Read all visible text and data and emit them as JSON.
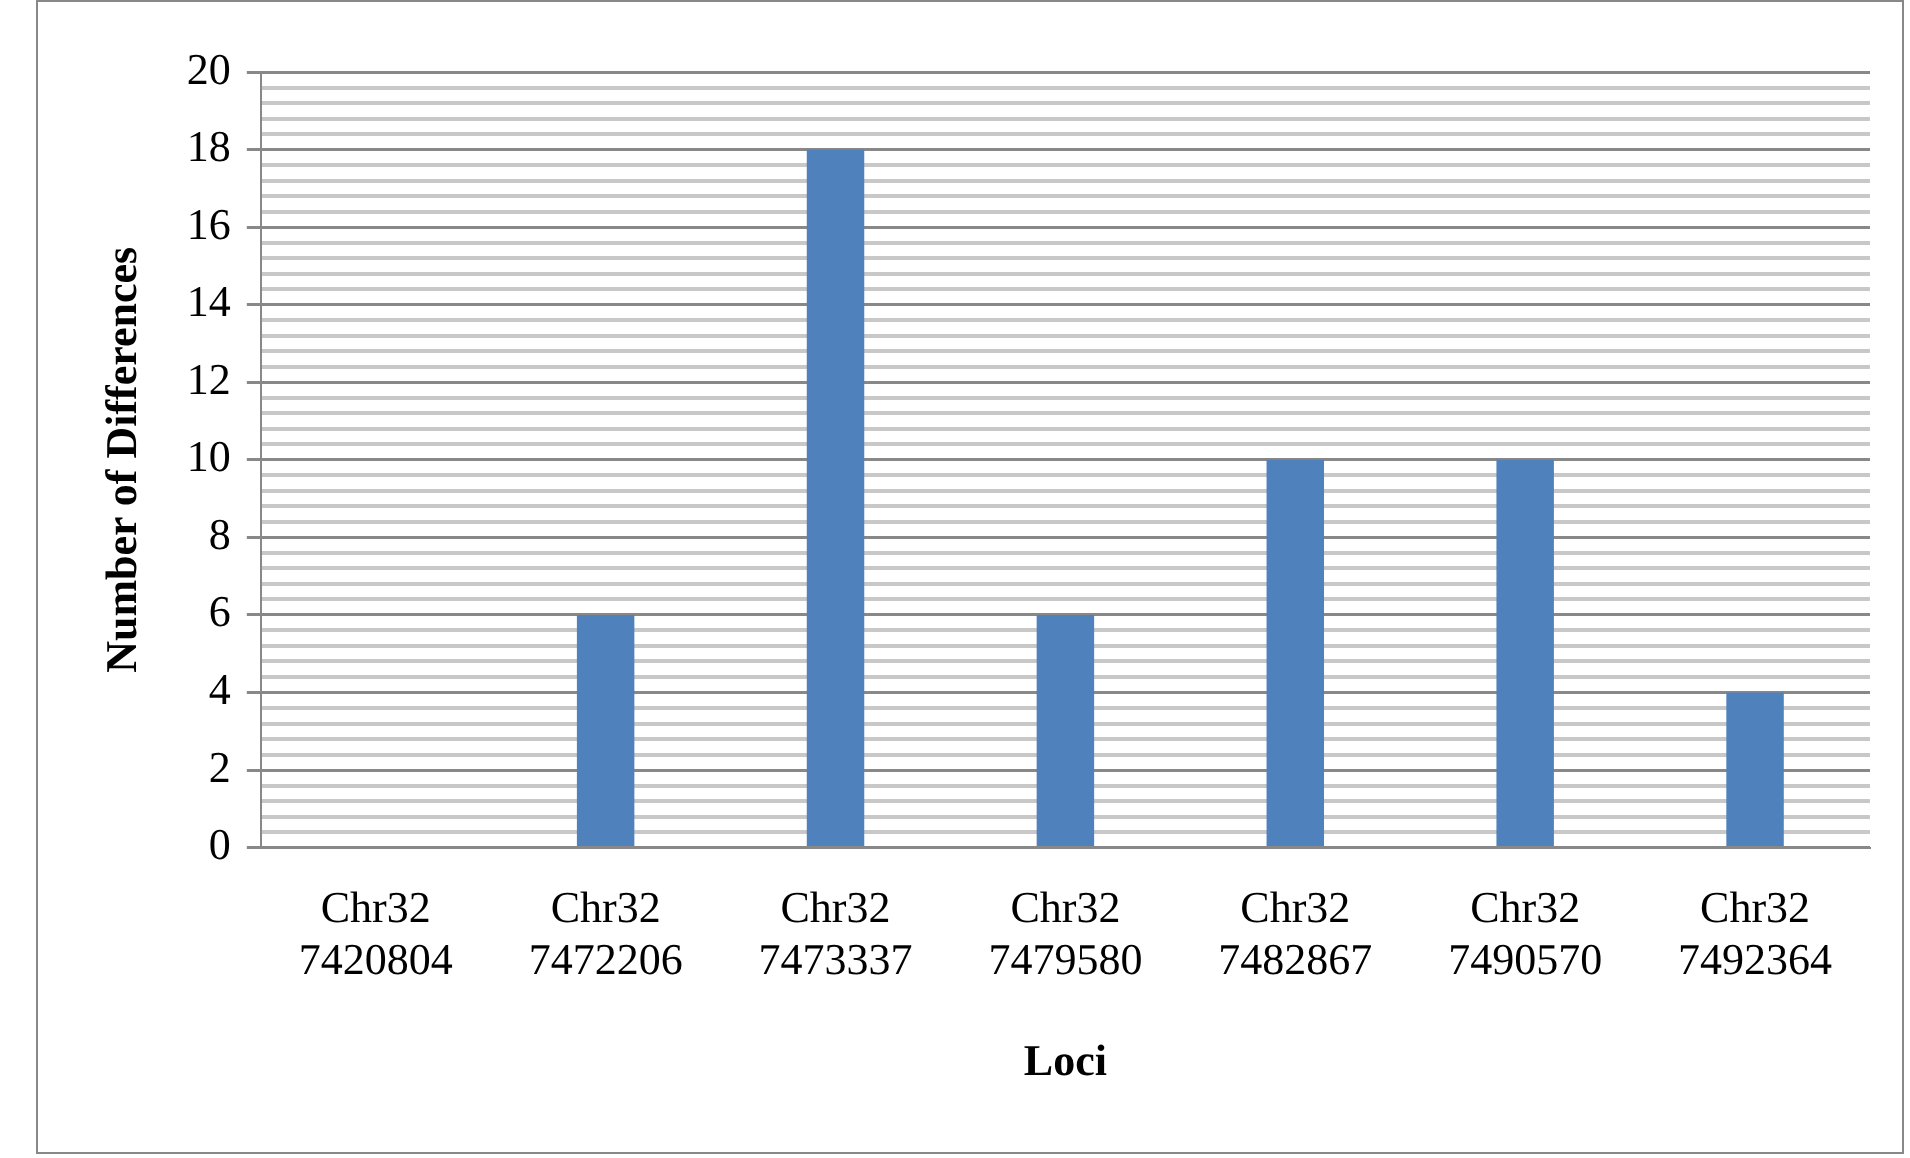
{
  "chart_data": {
    "type": "bar",
    "xlabel": "Loci",
    "ylabel": "Number of Differences",
    "categories": [
      "Chr32 7420804",
      "Chr32 7472206",
      "Chr32 7473337",
      "Chr32 7479580",
      "Chr32 7482867",
      "Chr32 7490570",
      "Chr32 7492364"
    ],
    "values": [
      0,
      6,
      18,
      6,
      10,
      10,
      4
    ],
    "color": "#4f81bd",
    "ylim": [
      0,
      20
    ],
    "yticks": [
      0,
      {
        "value": 0.4,
        "label": null
      },
      {
        "value": 0.8,
        "label": null
      },
      {
        "value": 1.2,
        "label": null
      },
      {
        "value": 1.6,
        "label": null
      },
      2,
      {
        "value": 2.4,
        "label": null
      },
      {
        "value": 2.8,
        "label": null
      },
      {
        "value": 3.2,
        "label": null
      },
      {
        "value": 3.6,
        "label": null
      },
      4,
      {
        "value": 4.4,
        "label": null
      },
      {
        "value": 4.8,
        "label": null
      },
      {
        "value": 5.2,
        "label": null
      },
      {
        "value": 5.6,
        "label": null
      },
      6,
      {
        "value": 6.4,
        "label": null
      },
      {
        "value": 6.8,
        "label": null
      },
      {
        "value": 7.2,
        "label": null
      },
      {
        "value": 7.6,
        "label": null
      },
      8,
      {
        "value": 8.4,
        "label": null
      },
      {
        "value": 8.8,
        "label": null
      },
      {
        "value": 9.2,
        "label": null
      },
      {
        "value": 9.6,
        "label": null
      },
      10,
      {
        "value": 10.4,
        "label": null
      },
      {
        "value": 10.8,
        "label": null
      },
      {
        "value": 11.2,
        "label": null
      },
      {
        "value": 11.6,
        "label": null
      },
      12,
      {
        "value": 12.4,
        "label": null
      },
      {
        "value": 12.8,
        "label": null
      },
      {
        "value": 13.2,
        "label": null
      },
      {
        "value": 13.6,
        "label": null
      },
      14,
      {
        "value": 14.4,
        "label": null
      },
      {
        "value": 14.8,
        "label": null
      },
      {
        "value": 15.2,
        "label": null
      },
      {
        "value": 15.6,
        "label": null
      },
      16,
      {
        "value": 16.4,
        "label": null
      },
      {
        "value": 16.8,
        "label": null
      },
      {
        "value": 17.2,
        "label": null
      },
      {
        "value": 17.6,
        "label": null
      },
      18,
      {
        "value": 18.4,
        "label": null
      },
      {
        "value": 18.8,
        "label": null
      },
      {
        "value": 19.2,
        "label": null
      },
      {
        "value": 19.6,
        "label": null
      },
      20
    ],
    "grid": true,
    "legend": false
  }
}
